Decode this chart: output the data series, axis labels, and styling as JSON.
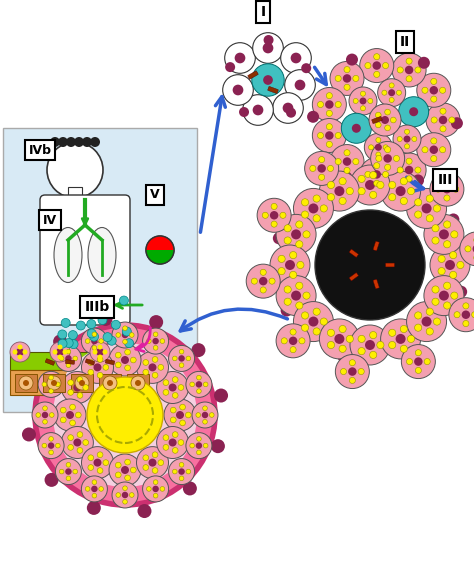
{
  "bg_color": "#f0f0f0",
  "pink_cell": "#f4a0b0",
  "dark_pink": "#8b2252",
  "yellow": "#ffee00",
  "teal": "#40c0c0",
  "blue_arrow": "#3060d0",
  "green": "#50a000",
  "red": "#cc2020",
  "magenta": "#e020a0",
  "label_I": "I",
  "label_II": "II",
  "label_III": "III",
  "label_IIIb": "IIIb",
  "label_IV": "IV",
  "label_IVb": "IVb",
  "label_V": "V"
}
